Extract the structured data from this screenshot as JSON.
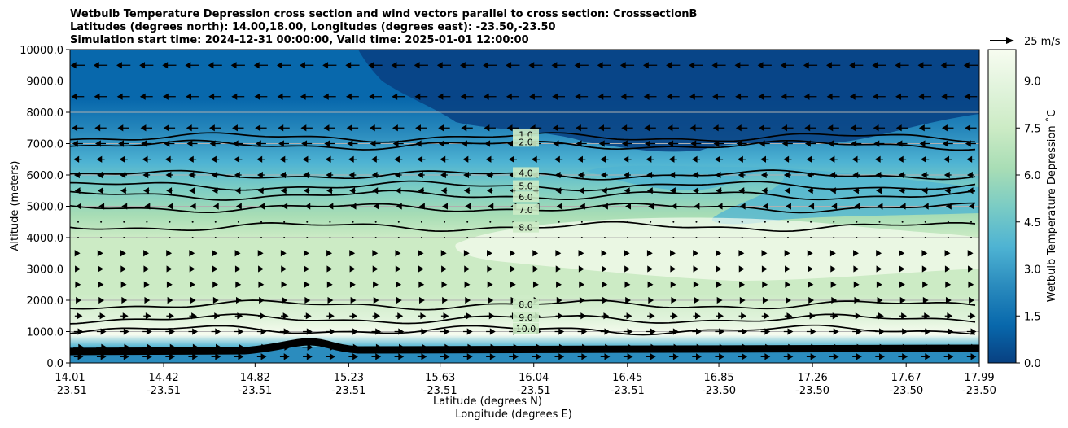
{
  "chart_data": {
    "type": "heatmap",
    "title_lines": [
      "Wetbulb Temperature Depression cross section and wind vectors parallel to cross section: CrosssectionB",
      "Latitudes (degrees north): 14.00,18.00, Longitudes (degrees east): -23.50,-23.50",
      "Simulation start time: 2024-12-31 00:00:00, Valid time: 2025-01-01 12:00:00"
    ],
    "ylabel": "Altitude (meters)",
    "xlabel_lines": [
      "Latitude (degrees N)",
      "Longitude (degrees E)"
    ],
    "colorbar_label": "Wetbulb Temperature Depression ˚C",
    "ylim": [
      0,
      10000
    ],
    "y_ticks": [
      "0.0",
      "1000.0",
      "2000.0",
      "3000.0",
      "4000.0",
      "5000.0",
      "6000.0",
      "7000.0",
      "8000.0",
      "9000.0",
      "10000.0"
    ],
    "x_ticks": [
      {
        "lat": "14.01",
        "lon": "-23.51"
      },
      {
        "lat": "14.42",
        "lon": "-23.51"
      },
      {
        "lat": "14.82",
        "lon": "-23.51"
      },
      {
        "lat": "15.23",
        "lon": "-23.51"
      },
      {
        "lat": "15.63",
        "lon": "-23.51"
      },
      {
        "lat": "16.04",
        "lon": "-23.51"
      },
      {
        "lat": "16.45",
        "lon": "-23.51"
      },
      {
        "lat": "16.85",
        "lon": "-23.50"
      },
      {
        "lat": "17.26",
        "lon": "-23.50"
      },
      {
        "lat": "17.67",
        "lon": "-23.50"
      },
      {
        "lat": "17.99",
        "lon": "-23.50"
      }
    ],
    "colorbar_range": [
      0,
      10
    ],
    "colorbar_ticks": [
      "0.0",
      "1.5",
      "3.0",
      "4.5",
      "6.0",
      "7.5",
      "9.0"
    ],
    "colorbar_colors": [
      "#084081",
      "#0868ac",
      "#2b8cbe",
      "#4eb3d3",
      "#7bccc4",
      "#a8ddb5",
      "#ccebc5",
      "#e0f3db",
      "#f7fcf0"
    ],
    "quiver_key_label": "25 m/s",
    "grid": "horizontal",
    "levels": [
      {
        "altitude": 9500,
        "value": 0.6,
        "wind": -1.0
      },
      {
        "altitude": 8500,
        "value": 1.0,
        "wind": -0.9
      },
      {
        "altitude": 7500,
        "value": 1.5,
        "wind": -0.8
      },
      {
        "altitude": 7000,
        "value": 2.0,
        "wind": -0.7
      },
      {
        "altitude": 6500,
        "value": 3.0,
        "wind": -0.5
      },
      {
        "altitude": 6000,
        "value": 4.0,
        "wind": -0.4
      },
      {
        "altitude": 5500,
        "value": 5.5,
        "wind": -0.3
      },
      {
        "altitude": 5000,
        "value": 6.5,
        "wind": -0.1
      },
      {
        "altitude": 4500,
        "value": 7.5,
        "wind": 0.0
      },
      {
        "altitude": 4000,
        "value": 8.0,
        "wind": 0.0
      },
      {
        "altitude": 3500,
        "value": 8.0,
        "wind": 0.05
      },
      {
        "altitude": 3000,
        "value": 8.2,
        "wind": 0.1
      },
      {
        "altitude": 2500,
        "value": 8.0,
        "wind": 0.15
      },
      {
        "altitude": 2000,
        "value": 8.5,
        "wind": 0.25
      },
      {
        "altitude": 1500,
        "value": 9.5,
        "wind": 0.45
      },
      {
        "altitude": 1000,
        "value": 10.0,
        "wind": 0.6
      },
      {
        "altitude": 500,
        "value": 5.0,
        "wind": 0.7
      },
      {
        "altitude": 200,
        "value": 2.0,
        "wind": 0.6
      }
    ],
    "contours": [
      {
        "label": "1.0",
        "altitude": 7200
      },
      {
        "label": "2.0",
        "altitude": 6950
      },
      {
        "label": "4.0",
        "altitude": 6000
      },
      {
        "label": "5.0",
        "altitude": 5650
      },
      {
        "label": "6.0",
        "altitude": 5350
      },
      {
        "label": "7.0",
        "altitude": 4950
      },
      {
        "label": "8.0",
        "altitude": 4350
      },
      {
        "label": "8.0",
        "altitude": 1850
      },
      {
        "label": "9.0",
        "altitude": 1400
      },
      {
        "label": "10.0",
        "altitude": 1050
      }
    ]
  }
}
